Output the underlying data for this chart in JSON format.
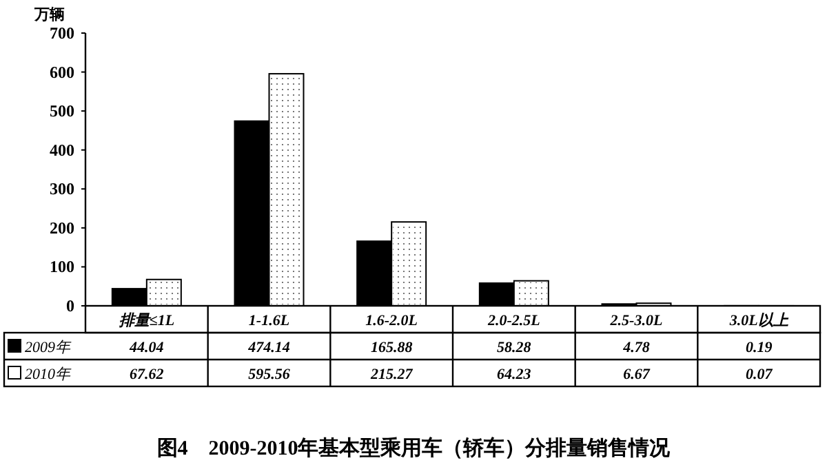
{
  "chart_data": {
    "type": "bar",
    "title": "图4　2009-2010年基本型乘用车（轿车）分排量销售情况",
    "ylabel": "万辆",
    "categories": [
      "排量≤1L",
      "1-1.6L",
      "1.6-2.0L",
      "2.0-2.5L",
      "2.5-3.0L",
      "3.0L以上"
    ],
    "series": [
      {
        "name": "2009年",
        "color": "#000000",
        "values": [
          44.04,
          474.14,
          165.88,
          58.28,
          4.78,
          0.19
        ]
      },
      {
        "name": "2010年",
        "color": "#ffffff",
        "values": [
          67.62,
          595.56,
          215.27,
          64.23,
          6.67,
          0.07
        ]
      }
    ],
    "ylim": [
      0,
      700
    ],
    "yticks": [
      0,
      100,
      200,
      300,
      400,
      500,
      600,
      700
    ],
    "data_labels": true,
    "legend": "bottom",
    "grid": false
  }
}
